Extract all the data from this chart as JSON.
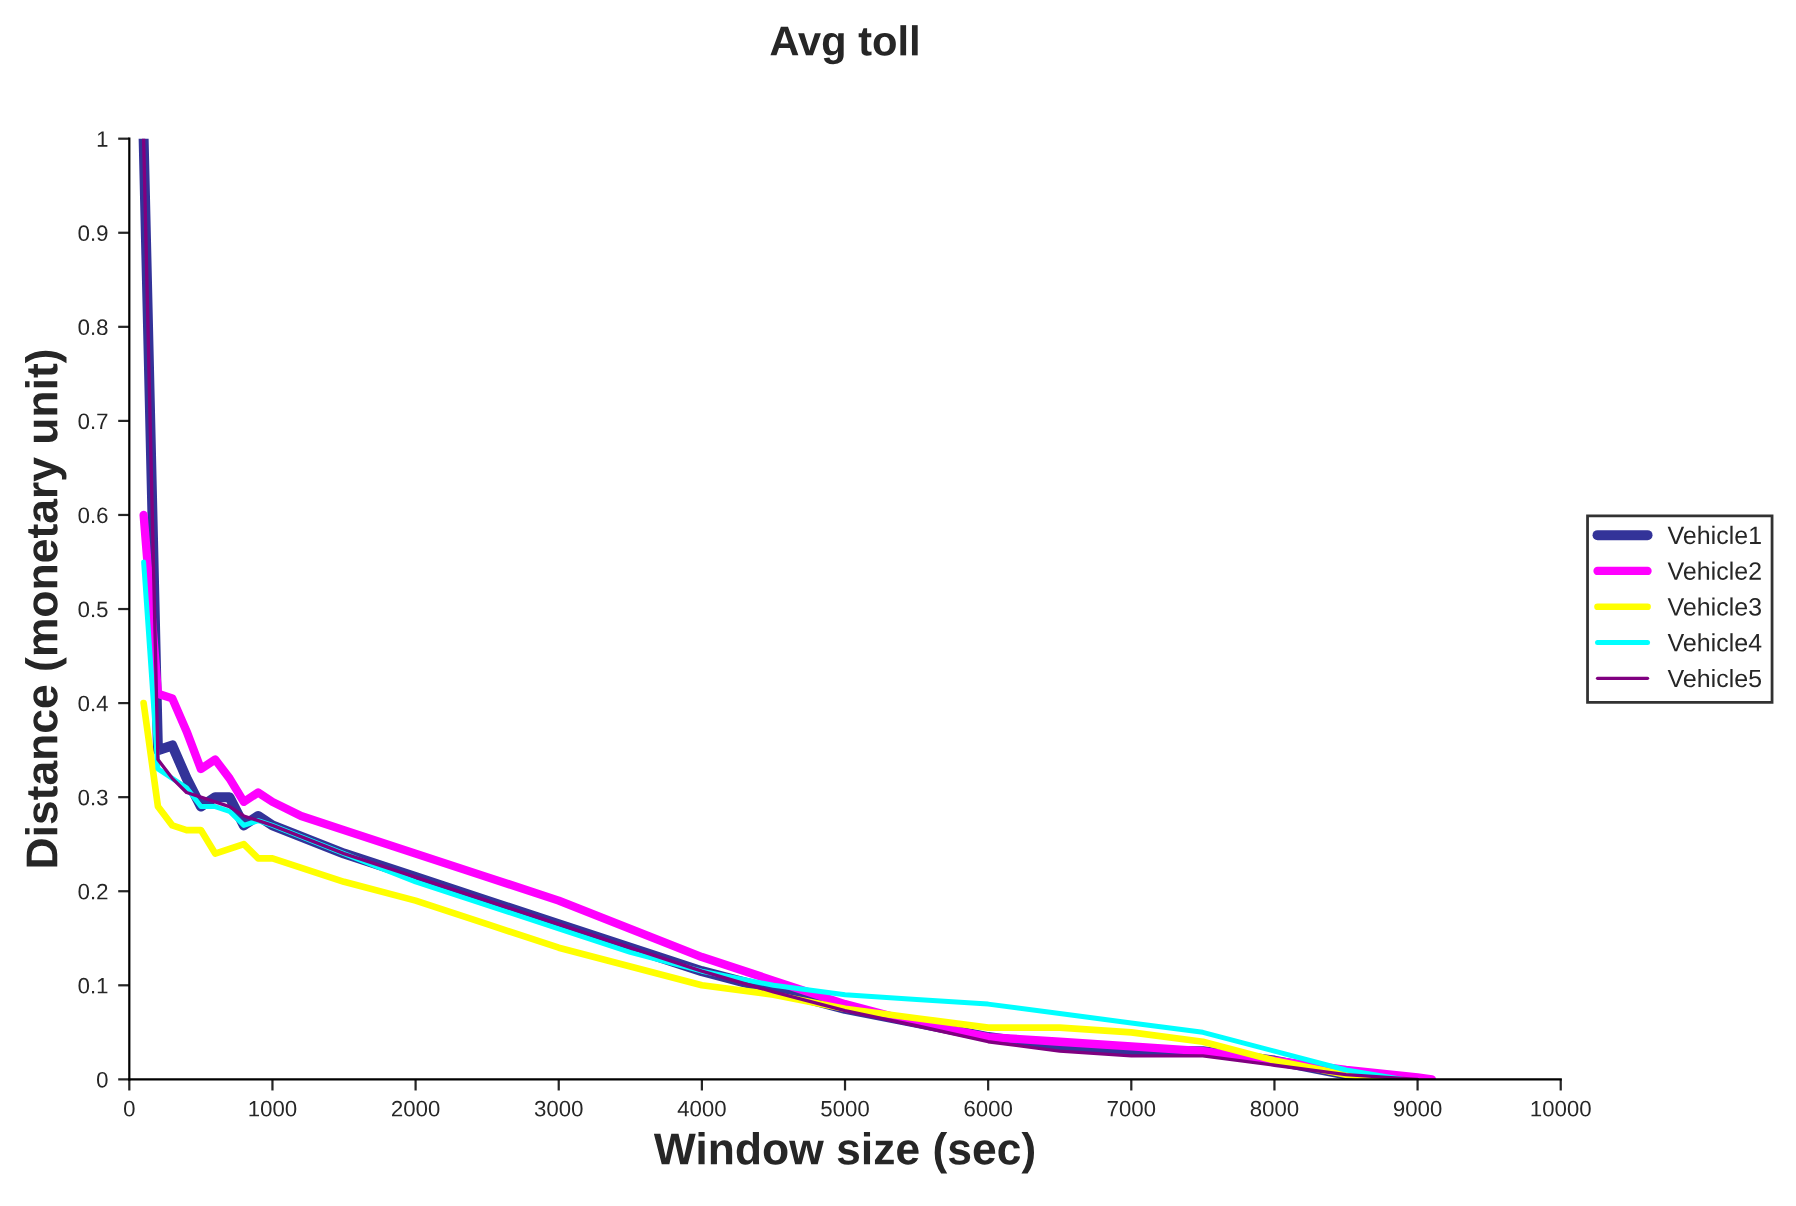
{
  "chart_data": {
    "type": "line",
    "title": "Avg toll",
    "xlabel": "Window size (sec)",
    "ylabel": "Distance (monetary unit)",
    "xlim": [
      0,
      10000
    ],
    "xticks": [
      0,
      1000,
      2000,
      3000,
      4000,
      5000,
      6000,
      7000,
      8000,
      9000,
      10000
    ],
    "ylim": [
      0,
      1
    ],
    "yticks": [
      0,
      0.1,
      0.2,
      0.3,
      0.4,
      0.5,
      0.6,
      0.7,
      0.8,
      0.9,
      1
    ],
    "grid": false,
    "legend": "right",
    "marker": "none",
    "line_style": "solid",
    "series": [
      {
        "name": "Vehicle1",
        "color": "#333399",
        "x": [
          100,
          200,
          300,
          400,
          500,
          600,
          700,
          800,
          900,
          1000,
          1500,
          2000,
          2500,
          3000,
          3500,
          4000,
          4500,
          5000,
          5500,
          6000,
          6500,
          7000,
          7500,
          8000,
          8500,
          9000
        ],
        "values": [
          1.0,
          0.35,
          0.355,
          0.32,
          0.29,
          0.3,
          0.3,
          0.27,
          0.28,
          0.27,
          0.24,
          0.215,
          0.19,
          0.165,
          0.14,
          0.115,
          0.095,
          0.075,
          0.06,
          0.045,
          0.035,
          0.03,
          0.03,
          0.02,
          0.005,
          0
        ]
      },
      {
        "name": "Vehicle2",
        "color": "#ff00ff",
        "x": [
          100,
          200,
          300,
          400,
          500,
          600,
          700,
          800,
          900,
          1000,
          1200,
          1500,
          2000,
          2500,
          3000,
          3500,
          4000,
          4500,
          5000,
          5500,
          6000,
          6500,
          7000,
          7500,
          8000,
          8500,
          9000,
          9100
        ],
        "values": [
          0.6,
          0.41,
          0.405,
          0.37,
          0.33,
          0.34,
          0.32,
          0.295,
          0.305,
          0.295,
          0.28,
          0.265,
          0.24,
          0.215,
          0.19,
          0.16,
          0.13,
          0.105,
          0.08,
          0.06,
          0.045,
          0.04,
          0.035,
          0.03,
          0.02,
          0.01,
          0.002,
          0
        ]
      },
      {
        "name": "Vehicle3",
        "color": "#ffff00",
        "x": [
          100,
          200,
          300,
          400,
          500,
          600,
          700,
          800,
          900,
          1000,
          1500,
          2000,
          2500,
          3000,
          3500,
          4000,
          4500,
          5000,
          5500,
          6000,
          6500,
          7000,
          7500,
          8000,
          8500,
          8800
        ],
        "values": [
          0.4,
          0.29,
          0.27,
          0.265,
          0.265,
          0.24,
          0.245,
          0.25,
          0.235,
          0.235,
          0.21,
          0.19,
          0.165,
          0.14,
          0.12,
          0.1,
          0.09,
          0.075,
          0.065,
          0.055,
          0.055,
          0.05,
          0.04,
          0.02,
          0.005,
          0
        ]
      },
      {
        "name": "Vehicle4",
        "color": "#00ffff",
        "x": [
          100,
          200,
          300,
          400,
          500,
          600,
          700,
          800,
          900,
          1000,
          1500,
          2000,
          2500,
          3000,
          3500,
          4000,
          4500,
          5000,
          5500,
          6000,
          6500,
          7000,
          7500,
          8000,
          8500,
          8900
        ],
        "values": [
          0.55,
          0.33,
          0.32,
          0.31,
          0.29,
          0.29,
          0.285,
          0.27,
          0.275,
          0.27,
          0.24,
          0.21,
          0.185,
          0.16,
          0.135,
          0.115,
          0.1,
          0.09,
          0.085,
          0.08,
          0.07,
          0.06,
          0.05,
          0.03,
          0.01,
          0
        ]
      },
      {
        "name": "Vehicle5",
        "color": "#800080",
        "x": [
          100,
          200,
          300,
          400,
          500,
          600,
          700,
          800,
          900,
          1000,
          1500,
          2000,
          2500,
          3000,
          3500,
          4000,
          4500,
          5000,
          5500,
          6000,
          6500,
          7000,
          7500,
          8000,
          8500,
          9000
        ],
        "values": [
          1.0,
          0.34,
          0.32,
          0.305,
          0.3,
          0.295,
          0.29,
          0.28,
          0.275,
          0.27,
          0.24,
          0.215,
          0.19,
          0.165,
          0.14,
          0.115,
          0.093,
          0.073,
          0.057,
          0.04,
          0.03,
          0.025,
          0.025,
          0.015,
          0.005,
          0
        ]
      }
    ]
  }
}
